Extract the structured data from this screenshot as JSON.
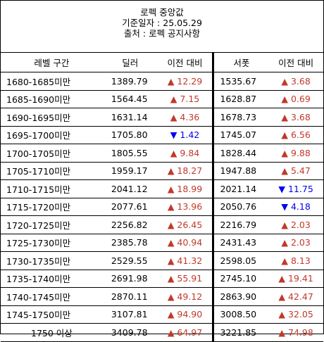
{
  "title": {
    "line1": "로펙 중앙값",
    "line2": "기준일자 : 25.05.29",
    "line3": "출처 : 로펙 공지사항"
  },
  "headers": {
    "range": "레벨 구간",
    "dealer": "딜러",
    "dealer_prev": "이전 대비",
    "seopom": "서폿",
    "seopom_prev": "이전 대비"
  },
  "up_arrow": "▲",
  "down_arrow": "▼",
  "colors": {
    "up": "#c0392b",
    "down": "#0000ee"
  },
  "rows": [
    {
      "range": "1680-1685미만",
      "dealer": "1389.79",
      "d_dir": "up",
      "d_chg": "12.29",
      "seopom": "1535.67",
      "s_dir": "up",
      "s_chg": "3.68"
    },
    {
      "range": "1685-1690미만",
      "dealer": "1564.45",
      "d_dir": "up",
      "d_chg": "7.15",
      "seopom": "1628.87",
      "s_dir": "up",
      "s_chg": "0.69"
    },
    {
      "range": "1690-1695미만",
      "dealer": "1631.14",
      "d_dir": "up",
      "d_chg": "4.36",
      "seopom": "1678.73",
      "s_dir": "up",
      "s_chg": "3.68"
    },
    {
      "range": "1695-1700미만",
      "dealer": "1705.80",
      "d_dir": "down",
      "d_chg": "1.42",
      "seopom": "1745.07",
      "s_dir": "up",
      "s_chg": "6.56"
    },
    {
      "range": "1700-1705미만",
      "dealer": "1805.55",
      "d_dir": "up",
      "d_chg": "9.84",
      "seopom": "1828.44",
      "s_dir": "up",
      "s_chg": "9.88"
    },
    {
      "range": "1705-1710미만",
      "dealer": "1959.17",
      "d_dir": "up",
      "d_chg": "18.27",
      "seopom": "1947.88",
      "s_dir": "up",
      "s_chg": "5.47"
    },
    {
      "range": "1710-1715미만",
      "dealer": "2041.12",
      "d_dir": "up",
      "d_chg": "18.99",
      "seopom": "2021.14",
      "s_dir": "down",
      "s_chg": "11.75"
    },
    {
      "range": "1715-1720미만",
      "dealer": "2077.61",
      "d_dir": "up",
      "d_chg": "13.96",
      "seopom": "2050.76",
      "s_dir": "down",
      "s_chg": "4.18"
    },
    {
      "range": "1720-1725미만",
      "dealer": "2256.82",
      "d_dir": "up",
      "d_chg": "26.45",
      "seopom": "2216.79",
      "s_dir": "up",
      "s_chg": "2.03"
    },
    {
      "range": "1725-1730미만",
      "dealer": "2385.78",
      "d_dir": "up",
      "d_chg": "40.94",
      "seopom": "2431.43",
      "s_dir": "up",
      "s_chg": "2.03"
    },
    {
      "range": "1730-1735미만",
      "dealer": "2529.55",
      "d_dir": "up",
      "d_chg": "41.32",
      "seopom": "2598.05",
      "s_dir": "up",
      "s_chg": "8.13"
    },
    {
      "range": "1735-1740미만",
      "dealer": "2691.98",
      "d_dir": "up",
      "d_chg": "55.91",
      "seopom": "2745.10",
      "s_dir": "up",
      "s_chg": "19.41"
    },
    {
      "range": "1740-1745미만",
      "dealer": "2870.11",
      "d_dir": "up",
      "d_chg": "49.12",
      "seopom": "2863.90",
      "s_dir": "up",
      "s_chg": "42.47"
    },
    {
      "range": "1745-1750미만",
      "dealer": "3107.81",
      "d_dir": "up",
      "d_chg": "94.90",
      "seopom": "3008.50",
      "s_dir": "up",
      "s_chg": "32.05"
    },
    {
      "range": "1750 이상",
      "dealer": "3409.78",
      "d_dir": "up",
      "d_chg": "64.97",
      "seopom": "3221.85",
      "s_dir": "up",
      "s_chg": "74.98"
    }
  ]
}
